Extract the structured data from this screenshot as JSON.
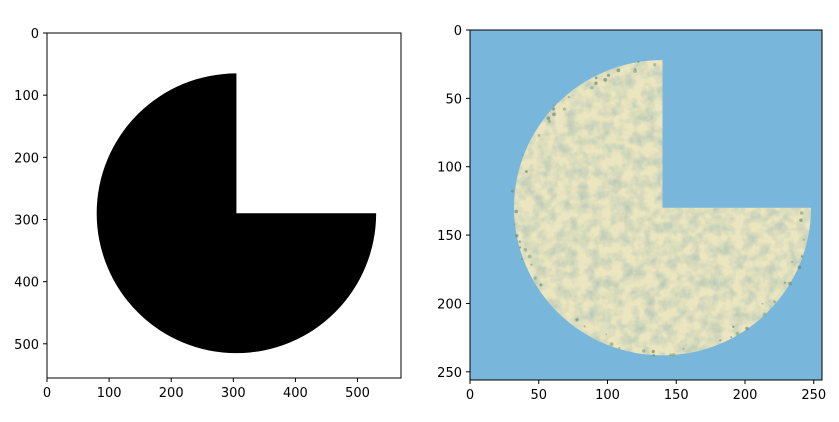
{
  "chart_data": [
    {
      "type": "image",
      "image_size": [
        570,
        555
      ],
      "content": "black pie/pac-man mask on white; quarter-circle cut out at top-right",
      "circle_center": [
        305,
        290
      ],
      "circle_radius": 225,
      "cutout_quadrant": "top-right",
      "colors": {
        "shape": "#000000",
        "background": "#ffffff"
      },
      "xlim": [
        0,
        570
      ],
      "ylim": [
        555,
        0
      ],
      "xticks": [
        0,
        100,
        200,
        300,
        400,
        500
      ],
      "yticks": [
        0,
        100,
        200,
        300,
        400,
        500
      ],
      "xtick_labels": [
        "0",
        "100",
        "200",
        "300",
        "400",
        "500"
      ],
      "ytick_labels": [
        "0",
        "100",
        "200",
        "300",
        "400",
        "500"
      ]
    },
    {
      "type": "image",
      "image_size": [
        256,
        256
      ],
      "content": "satellite-style land texture masked by the same pie shape over light blue water",
      "circle_center": [
        140,
        130
      ],
      "circle_radius": 108,
      "cutout_quadrant": "top-right",
      "colors": {
        "land": "#ebe6bf",
        "land_texture": "#8fa886",
        "land_dark": "#6f8c73",
        "water": "#78b6dc"
      },
      "xlim": [
        0,
        256
      ],
      "ylim": [
        256,
        0
      ],
      "xticks": [
        0,
        50,
        100,
        150,
        200,
        250
      ],
      "yticks": [
        0,
        50,
        100,
        150,
        200,
        250
      ],
      "xtick_labels": [
        "0",
        "50",
        "100",
        "150",
        "200",
        "250"
      ],
      "ytick_labels": [
        "0",
        "50",
        "100",
        "150",
        "200",
        "250"
      ]
    }
  ]
}
